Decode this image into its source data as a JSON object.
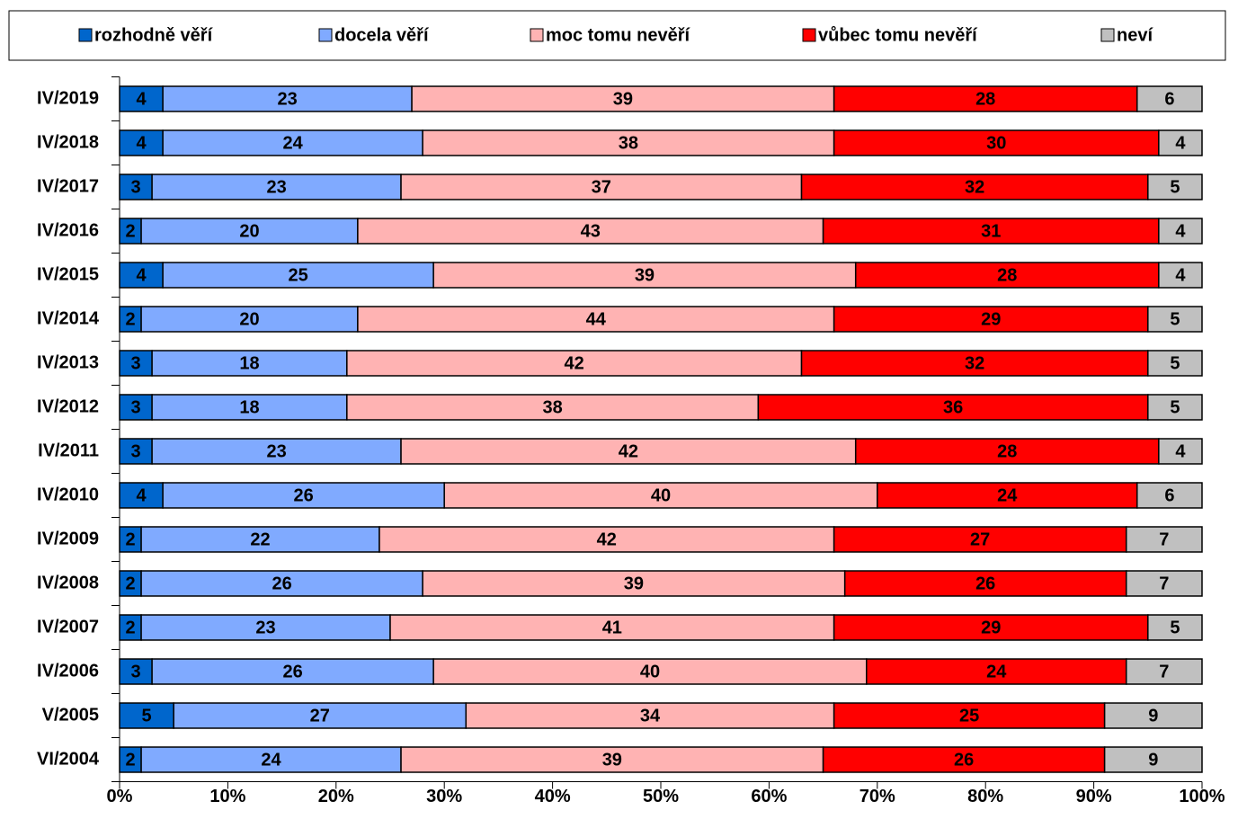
{
  "chart_data": {
    "type": "bar",
    "stacked": true,
    "categories": [
      "IV/2019",
      "IV/2018",
      "IV/2017",
      "IV/2016",
      "IV/2015",
      "IV/2014",
      "IV/2013",
      "IV/2012",
      "IV/2011",
      "IV/2010",
      "IV/2009",
      "IV/2008",
      "IV/2007",
      "IV/2006",
      "V/2005",
      "VI/2004"
    ],
    "series": [
      {
        "name": "rozhodně věří",
        "color": "#0066cc",
        "values": [
          4,
          4,
          3,
          2,
          4,
          2,
          3,
          3,
          3,
          4,
          2,
          2,
          2,
          3,
          5,
          2
        ]
      },
      {
        "name": "docela věří",
        "color": "#80aaff",
        "values": [
          23,
          24,
          23,
          20,
          25,
          20,
          18,
          18,
          23,
          26,
          22,
          26,
          23,
          26,
          27,
          24
        ]
      },
      {
        "name": "moc tomu nevěří",
        "color": "#ffb3b3",
        "values": [
          39,
          38,
          37,
          43,
          39,
          44,
          42,
          38,
          42,
          40,
          42,
          39,
          41,
          40,
          34,
          39
        ]
      },
      {
        "name": "vůbec tomu nevěří",
        "color": "#ff0000",
        "values": [
          28,
          30,
          32,
          31,
          28,
          29,
          32,
          36,
          28,
          24,
          27,
          26,
          29,
          24,
          25,
          26
        ]
      },
      {
        "name": "neví",
        "color": "#c0c0c0",
        "values": [
          6,
          4,
          5,
          4,
          4,
          5,
          5,
          5,
          4,
          6,
          7,
          7,
          5,
          7,
          9,
          9
        ]
      }
    ],
    "xlim": [
      0,
      100
    ],
    "xticks": [
      {
        "value": 0,
        "label": "0%"
      },
      {
        "value": 10,
        "label": "10%"
      },
      {
        "value": 20,
        "label": "20%"
      },
      {
        "value": 30,
        "label": "30%"
      },
      {
        "value": 40,
        "label": "40%"
      },
      {
        "value": 50,
        "label": "50%"
      },
      {
        "value": 60,
        "label": "60%"
      },
      {
        "value": 70,
        "label": "70%"
      },
      {
        "value": 80,
        "label": "80%"
      },
      {
        "value": 90,
        "label": "90%"
      },
      {
        "value": 100,
        "label": "100%"
      }
    ]
  }
}
